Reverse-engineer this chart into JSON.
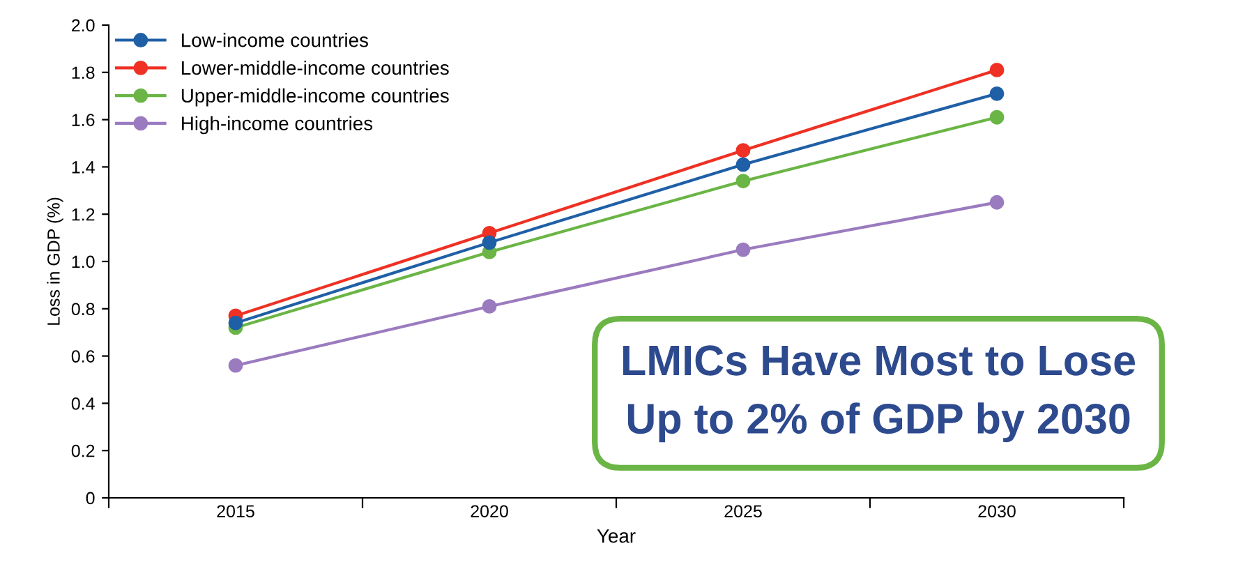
{
  "chart_data": {
    "type": "line",
    "xlabel": "Year",
    "ylabel": "Loss in GDP (%)",
    "categories": [
      "2015",
      "2020",
      "2025",
      "2030"
    ],
    "series": [
      {
        "name": "Low-income countries",
        "color": "#1f5fa6",
        "values": [
          0.74,
          1.08,
          1.41,
          1.71
        ]
      },
      {
        "name": "Lower-middle-income countries",
        "color": "#ee3124",
        "values": [
          0.77,
          1.12,
          1.47,
          1.81
        ]
      },
      {
        "name": "Upper-middle-income countries",
        "color": "#6ab545",
        "values": [
          0.72,
          1.04,
          1.34,
          1.61
        ]
      },
      {
        "name": "High-income countries",
        "color": "#9b7bbf",
        "values": [
          0.56,
          0.81,
          1.05,
          1.25
        ]
      }
    ],
    "ylim": [
      0,
      2
    ],
    "yticks": [
      0,
      {
        "value": 0.2,
        "label": "0.2"
      },
      {
        "value": 0.4,
        "label": "0.4"
      },
      {
        "value": 0.6,
        "label": "0.6"
      },
      {
        "value": 0.8,
        "label": "0.8"
      },
      {
        "value": 1.0,
        "label": "1.0"
      },
      {
        "value": 1.2,
        "label": "1.2"
      },
      {
        "value": 1.4,
        "label": "1.4"
      },
      {
        "value": 1.6,
        "label": "1.6"
      },
      {
        "value": 1.8,
        "label": "1.8"
      },
      {
        "value": 2.0,
        "label": "2.0"
      }
    ],
    "annotations": [
      "LMICs Have Most to Lose\nUp to 2% of GDP by 2030"
    ],
    "legend": "top left",
    "marker": "circle",
    "line_style": "solid",
    "grid": false
  }
}
